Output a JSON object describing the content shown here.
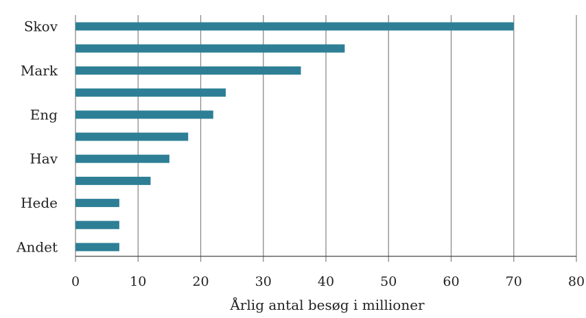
{
  "chart_data": {
    "type": "bar",
    "orientation": "horizontal",
    "title": "",
    "xlabel": "Årlig antal besøg i millioner",
    "ylabel": "",
    "categories": [
      "Skov",
      "",
      "Mark",
      "",
      "Eng",
      "",
      "Hav",
      "",
      "Hede",
      "",
      "Andet"
    ],
    "values": [
      70,
      43,
      36,
      24,
      22,
      18,
      15,
      12,
      7,
      7,
      7
    ],
    "xlim": [
      0,
      80
    ],
    "xticks": [
      0,
      10,
      20,
      30,
      40,
      50,
      60,
      70,
      80
    ],
    "grid": "vertical",
    "legend": "none",
    "bar_color": "#2e7f96"
  }
}
